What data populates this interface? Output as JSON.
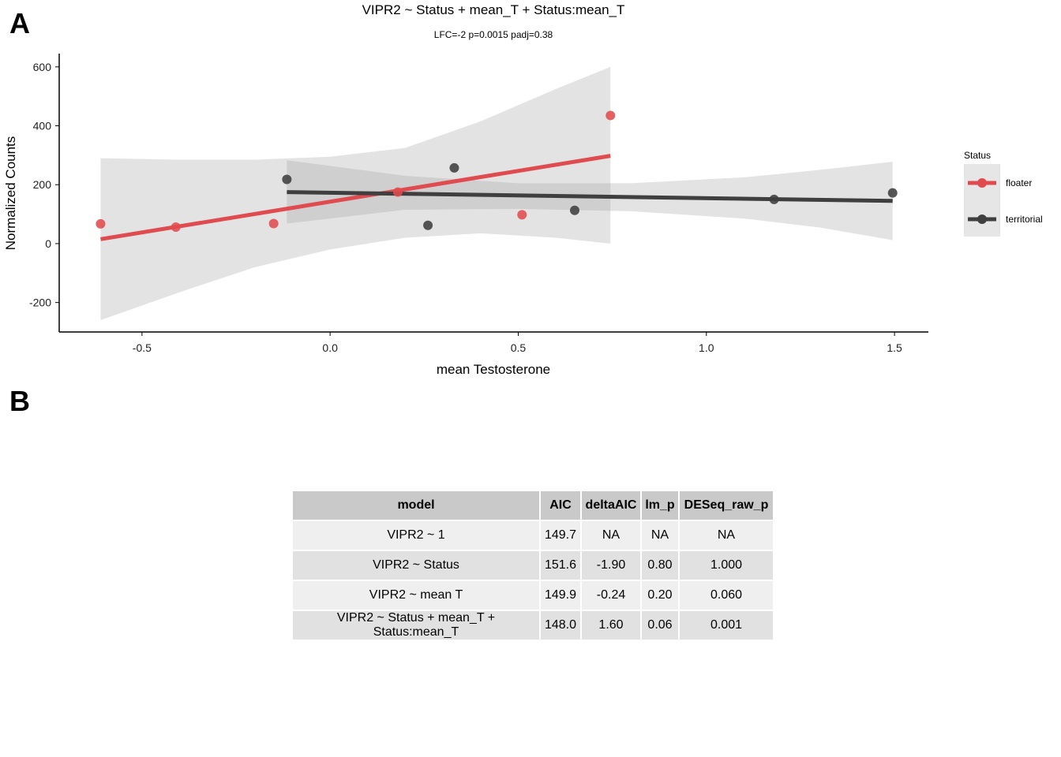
{
  "panels": {
    "a": "A",
    "b": "B"
  },
  "chart_data": {
    "type": "scatter",
    "title": "VIPR2 ~ Status + mean_T + Status:mean_T",
    "subtitle": "LFC=-2 p=0.0015 padj=0.38",
    "xlabel": "mean Testosterone",
    "ylabel": "Normalized Counts",
    "xlim": [
      -0.72,
      1.59
    ],
    "ylim": [
      -300,
      645
    ],
    "x_ticks": [
      -0.5,
      0.0,
      0.5,
      1.0,
      1.5
    ],
    "x_tick_labels": [
      "-0.5",
      "0.0",
      "0.5",
      "1.0",
      "1.5"
    ],
    "y_ticks": [
      -200,
      0,
      200,
      400,
      600
    ],
    "y_tick_labels": [
      "-200",
      "0",
      "200",
      "400",
      "600"
    ],
    "grid": false,
    "legend": {
      "title": "Status",
      "position": "right"
    },
    "series": [
      {
        "name": "floater",
        "color": "#e04b4f",
        "points": [
          {
            "x": -0.61,
            "y": 67
          },
          {
            "x": -0.41,
            "y": 56
          },
          {
            "x": -0.15,
            "y": 68
          },
          {
            "x": 0.18,
            "y": 175
          },
          {
            "x": 0.51,
            "y": 98
          },
          {
            "x": 0.745,
            "y": 435
          }
        ],
        "fit": {
          "x": [
            -0.61,
            0.745
          ],
          "y": [
            15,
            298
          ]
        },
        "ci": {
          "x": [
            -0.61,
            -0.4,
            -0.2,
            0.0,
            0.2,
            0.4,
            0.6,
            0.745
          ],
          "lower": [
            -260,
            -165,
            -80,
            -20,
            20,
            35,
            20,
            0
          ],
          "upper": [
            290,
            285,
            285,
            295,
            325,
            415,
            525,
            600
          ]
        }
      },
      {
        "name": "territorial",
        "color": "#3f3f3f",
        "points": [
          {
            "x": -0.115,
            "y": 218
          },
          {
            "x": 0.26,
            "y": 62
          },
          {
            "x": 0.33,
            "y": 257
          },
          {
            "x": 0.65,
            "y": 113
          },
          {
            "x": 1.18,
            "y": 150
          },
          {
            "x": 1.495,
            "y": 172
          }
        ],
        "fit": {
          "x": [
            -0.115,
            1.495
          ],
          "y": [
            175,
            145
          ]
        },
        "ci": {
          "x": [
            -0.115,
            0.2,
            0.5,
            0.8,
            1.1,
            1.3,
            1.495
          ],
          "lower": [
            68,
            115,
            118,
            110,
            85,
            55,
            12
          ],
          "upper": [
            283,
            230,
            205,
            205,
            225,
            250,
            278
          ]
        }
      }
    ]
  },
  "table": {
    "columns": [
      "model",
      "AIC",
      "deltaAIC",
      "lm_p",
      "DESeq_raw_p"
    ],
    "rows": [
      [
        "VIPR2 ~ 1",
        "149.7",
        "NA",
        "NA",
        "NA"
      ],
      [
        "VIPR2 ~ Status",
        "151.6",
        "-1.90",
        "0.80",
        "1.000"
      ],
      [
        "VIPR2 ~ mean T",
        "149.9",
        "-0.24",
        "0.20",
        "0.060"
      ],
      [
        "VIPR2 ~ Status + mean_T + Status:mean_T",
        "148.0",
        "1.60",
        "0.06",
        "0.001"
      ]
    ]
  }
}
